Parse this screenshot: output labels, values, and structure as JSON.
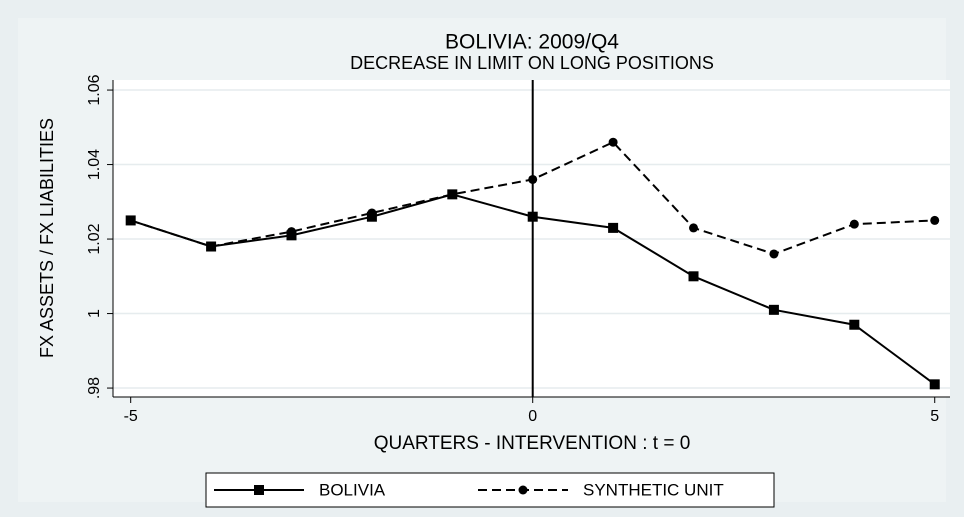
{
  "chart_data": {
    "type": "line",
    "title": "BOLIVIA: 2009/Q4",
    "subtitle": "DECREASE IN LIMIT ON LONG POSITIONS",
    "x_label": "QUARTERS - INTERVENTION : t = 0",
    "y_label": "FX ASSETS / FX LIABILITIES",
    "x": [
      -5,
      -4,
      -3,
      -2,
      -1,
      0,
      1,
      2,
      3,
      4,
      5
    ],
    "series": [
      {
        "name": "BOLIVIA",
        "color": "#000000",
        "marker": "square",
        "dash": "solid",
        "values": [
          1.025,
          1.018,
          1.021,
          1.026,
          1.032,
          1.026,
          1.023,
          1.01,
          1.001,
          0.997,
          0.981
        ]
      },
      {
        "name": "SYNTHETIC UNIT",
        "color": "#000000",
        "marker": "circle",
        "dash": "dashed",
        "values": [
          1.025,
          1.018,
          1.022,
          1.027,
          1.032,
          1.036,
          1.046,
          1.023,
          1.016,
          1.024,
          1.025
        ]
      }
    ],
    "xlim": [
      -5.22,
      5.19
    ],
    "ylim": [
      0.9776,
      1.0627
    ],
    "xticks": [
      -5,
      0,
      5
    ],
    "yticks": [
      {
        "value": 0.98,
        "label": ".98"
      },
      1,
      1.02,
      1.04,
      1.06
    ],
    "xline": 0,
    "grid": true,
    "legend_position": "bottom"
  }
}
